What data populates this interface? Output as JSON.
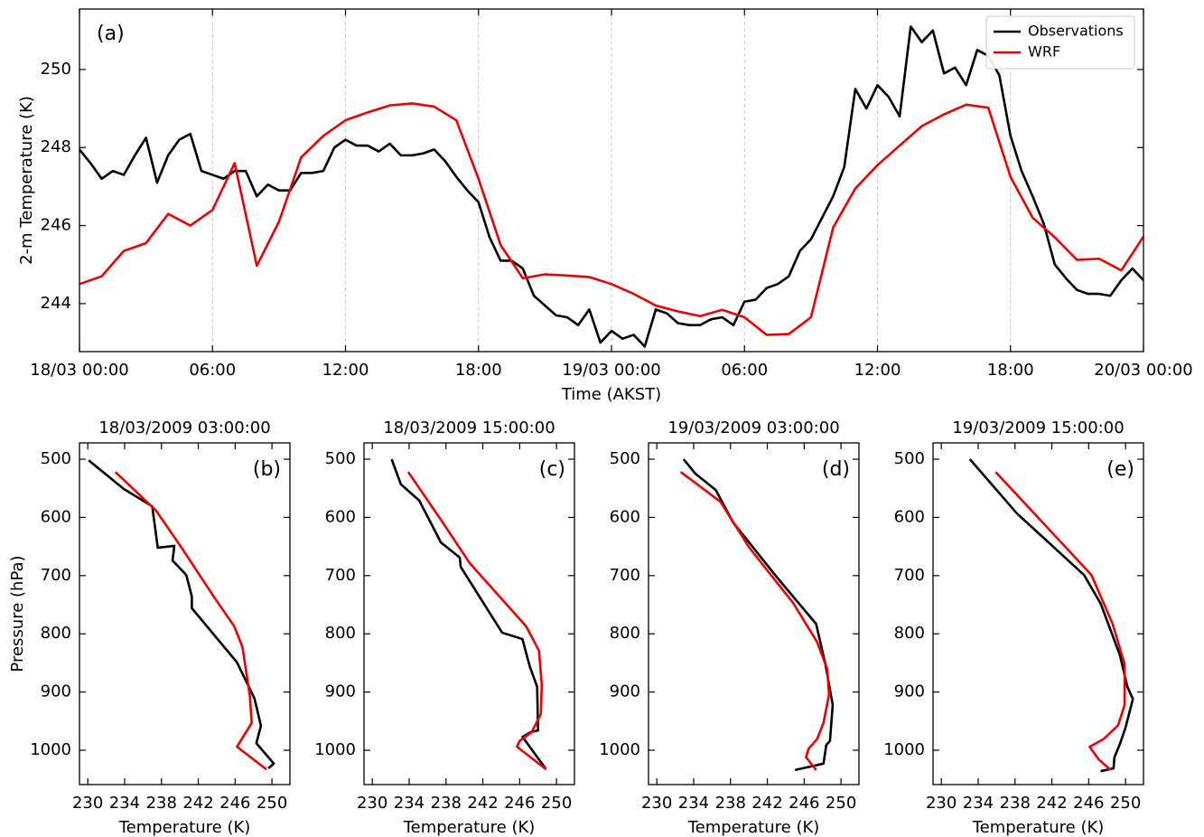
{
  "chart_data": [
    {
      "type": "line",
      "panel_label": "(a)",
      "xlabel": "Time (AKST)",
      "ylabel": "2-m Temperature (K)",
      "xlim": [
        0,
        48
      ],
      "xticks": [
        {
          "value": 0,
          "label": "18/03 00:00"
        },
        {
          "value": 6,
          "label": "06:00"
        },
        {
          "value": 12,
          "label": "12:00"
        },
        {
          "value": 18,
          "label": "18:00"
        },
        {
          "value": 24,
          "label": "19/03 00:00"
        },
        {
          "value": 30,
          "label": "06:00"
        },
        {
          "value": 36,
          "label": "12:00"
        },
        {
          "value": 42,
          "label": "18:00"
        },
        {
          "value": 48,
          "label": "20/03 00:00"
        }
      ],
      "ylim": [
        242.77,
        251.55
      ],
      "yticks": [
        244,
        246,
        248,
        250
      ],
      "grid": "x",
      "legend": "upper right",
      "series": [
        {
          "name": "Observations",
          "color": "#000000",
          "x": [
            0,
            0.5,
            1,
            1.5,
            2,
            2.5,
            3,
            3.5,
            4,
            4.5,
            5,
            5.5,
            6,
            6.5,
            7,
            7.5,
            8,
            8.5,
            9,
            9.5,
            10,
            10.5,
            11,
            11.5,
            12,
            12.5,
            13,
            13.5,
            14,
            14.5,
            15,
            15.5,
            16,
            16.5,
            17,
            17.5,
            18,
            18.5,
            19,
            19.5,
            20,
            20.5,
            21,
            21.5,
            22,
            22.5,
            23,
            23.5,
            24,
            24.5,
            25,
            25.5,
            26,
            26.5,
            27,
            27.5,
            28,
            28.5,
            29,
            29.5,
            30,
            30.5,
            31,
            31.5,
            32,
            32.5,
            33,
            33.5,
            34,
            34.5,
            35,
            35.5,
            36,
            36.5,
            37,
            37.5,
            38,
            38.5,
            39,
            39.5,
            40,
            40.5,
            41,
            41.5,
            42,
            42.5,
            43,
            43.5,
            44,
            44.5,
            45,
            45.5,
            46,
            46.5,
            47,
            47.5,
            48
          ],
          "values": [
            247.95,
            247.6,
            247.2,
            247.4,
            247.3,
            247.8,
            248.25,
            247.1,
            247.8,
            248.2,
            248.35,
            247.4,
            247.3,
            247.2,
            247.4,
            247.4,
            246.75,
            247.05,
            246.9,
            246.9,
            247.35,
            247.35,
            247.4,
            248.0,
            248.2,
            248.05,
            248.05,
            247.9,
            248.1,
            247.8,
            247.8,
            247.85,
            247.95,
            247.65,
            247.25,
            246.9,
            246.6,
            245.7,
            245.1,
            245.1,
            244.9,
            244.2,
            243.95,
            243.7,
            243.65,
            243.45,
            243.85,
            243.0,
            243.3,
            243.1,
            243.2,
            242.9,
            243.85,
            243.75,
            243.5,
            243.45,
            243.45,
            243.6,
            243.65,
            243.45,
            244.05,
            244.1,
            244.4,
            244.5,
            244.7,
            245.35,
            245.65,
            246.2,
            246.75,
            247.5,
            249.5,
            249.0,
            249.6,
            249.3,
            248.8,
            251.1,
            250.7,
            251.0,
            249.9,
            250.05,
            249.6,
            250.5,
            250.35,
            249.85,
            248.3,
            247.4,
            246.75,
            246.05,
            245.0,
            244.65,
            244.35,
            244.25,
            244.25,
            244.2,
            244.6,
            244.9,
            244.6
          ]
        },
        {
          "name": "WRF",
          "color": "#ee0000",
          "x": [
            0,
            1,
            2,
            3,
            4,
            5,
            6,
            7,
            8,
            9,
            10,
            11,
            12,
            13,
            14,
            15,
            16,
            17,
            18,
            19,
            20,
            21,
            22,
            23,
            24,
            25,
            26,
            27,
            28,
            29,
            30,
            31,
            32,
            33,
            34,
            35,
            36,
            37,
            38,
            39,
            40,
            41,
            42,
            43,
            44,
            45,
            46,
            47,
            48
          ],
          "values": [
            244.5,
            244.7,
            245.35,
            245.55,
            246.3,
            246.0,
            246.4,
            247.6,
            244.97,
            246.1,
            247.75,
            248.3,
            248.7,
            248.9,
            249.08,
            249.13,
            249.05,
            248.7,
            247.2,
            245.5,
            244.65,
            244.75,
            244.72,
            244.68,
            244.5,
            244.25,
            243.95,
            243.8,
            243.68,
            243.84,
            243.65,
            243.2,
            243.22,
            243.65,
            245.95,
            246.95,
            247.55,
            248.05,
            248.55,
            248.85,
            249.1,
            249.02,
            247.25,
            246.2,
            245.7,
            245.12,
            245.15,
            244.85,
            245.72
          ]
        }
      ]
    },
    {
      "type": "line",
      "title": "18/03/2009 03:00:00",
      "panel_label": "(b)",
      "xlabel": "Temperature (K)",
      "ylabel": "Pressure (hPa)",
      "xlim": [
        229.1,
        251.95
      ],
      "xticks": [
        230,
        234,
        238,
        242,
        246,
        250
      ],
      "ylim": [
        1059,
        472
      ],
      "yticks": [
        500,
        600,
        700,
        800,
        900,
        1000
      ],
      "series": [
        {
          "color": "#000000",
          "x": [
            230.1,
            233.9,
            237.0,
            237.6,
            239.4,
            239.2,
            240.7,
            241.3,
            241.3,
            246.2,
            248.1,
            248.8,
            248.3,
            250.2,
            249.6
          ],
          "values": [
            502,
            551,
            581,
            652,
            649,
            674,
            699,
            736,
            756,
            849,
            911,
            958,
            988,
            1023,
            1031
          ]
        },
        {
          "color": "#ee0000",
          "x": [
            233.0,
            237.4,
            240.1,
            243.8,
            245.9,
            246.8,
            247.6,
            247.8,
            246.2,
            249.4
          ],
          "values": [
            522,
            588,
            650,
            739,
            787,
            823,
            907,
            953,
            994,
            1033
          ]
        }
      ]
    },
    {
      "type": "line",
      "title": "18/03/2009 15:00:00",
      "panel_label": "(c)",
      "xlabel": "Temperature (K)",
      "xlim": [
        229.1,
        251.95
      ],
      "xticks": [
        230,
        234,
        238,
        242,
        246,
        250
      ],
      "ylim": [
        1059,
        472
      ],
      "yticks": [
        500,
        600,
        700,
        800,
        900,
        1000
      ],
      "series": [
        {
          "color": "#000000",
          "x": [
            232.1,
            233.1,
            235.1,
            237.45,
            239.5,
            239.6,
            244.1,
            246.3,
            247.1,
            247.9,
            248.0,
            247.2,
            246.3,
            247.0,
            248.8
          ],
          "values": [
            500,
            543,
            571,
            643,
            669,
            685,
            798,
            809,
            856,
            891,
            966,
            969,
            977,
            992,
            1031
          ]
        },
        {
          "color": "#ee0000",
          "x": [
            233.9,
            237.45,
            240.6,
            244.5,
            246.7,
            248.1,
            248.4,
            248.3,
            247.3,
            246.0,
            245.7,
            248.9
          ],
          "values": [
            522,
            604,
            679,
            748,
            787,
            829,
            887,
            938,
            969,
            984,
            994,
            1033
          ]
        }
      ]
    },
    {
      "type": "line",
      "title": "19/03/2009 03:00:00",
      "panel_label": "(d)",
      "xlabel": "Temperature (K)",
      "xlim": [
        229.1,
        251.95
      ],
      "xticks": [
        230,
        234,
        238,
        242,
        246,
        250
      ],
      "ylim": [
        1059,
        472
      ],
      "yticks": [
        500,
        600,
        700,
        800,
        900,
        1000
      ],
      "series": [
        {
          "color": "#000000",
          "x": [
            232.9,
            234.2,
            236.4,
            238.3,
            243.0,
            247.3,
            248.3,
            249.1,
            248.8,
            248.4,
            248.1,
            245.0
          ],
          "values": [
            500,
            525,
            553,
            609,
            702,
            783,
            852,
            922,
            984,
            991,
            1023,
            1034
          ]
        },
        {
          "color": "#ee0000",
          "x": [
            232.6,
            236.9,
            240.0,
            244.8,
            247.4,
            248.5,
            248.7,
            248.1,
            247.4,
            246.5,
            246.2,
            247.3
          ],
          "values": [
            522,
            573,
            651,
            747,
            814,
            860,
            904,
            953,
            981,
            997,
            1012,
            1034
          ]
        }
      ]
    },
    {
      "type": "line",
      "title": "19/03/2009 15:00:00",
      "panel_label": "(e)",
      "xlabel": "Temperature (K)",
      "xlim": [
        229.1,
        251.95
      ],
      "xticks": [
        230,
        234,
        238,
        242,
        246,
        250
      ],
      "ylim": [
        1059,
        472
      ],
      "yticks": [
        500,
        600,
        700,
        800,
        900,
        1000
      ],
      "series": [
        {
          "color": "#000000",
          "x": [
            233.1,
            238.2,
            245.5,
            247.3,
            249.4,
            250.2,
            250.8,
            250.0,
            249.4,
            248.8,
            248.7,
            247.3
          ],
          "values": [
            500,
            593,
            699,
            748,
            837,
            891,
            912,
            961,
            989,
            1012,
            1031,
            1036
          ]
        },
        {
          "color": "#ee0000",
          "x": [
            235.9,
            243.9,
            246.3,
            248.6,
            249.9,
            249.9,
            249.2,
            247.6,
            246.1,
            247.1,
            248.4
          ],
          "values": [
            522,
            658,
            699,
            783,
            852,
            922,
            957,
            981,
            994,
            1016,
            1034
          ]
        }
      ]
    }
  ]
}
